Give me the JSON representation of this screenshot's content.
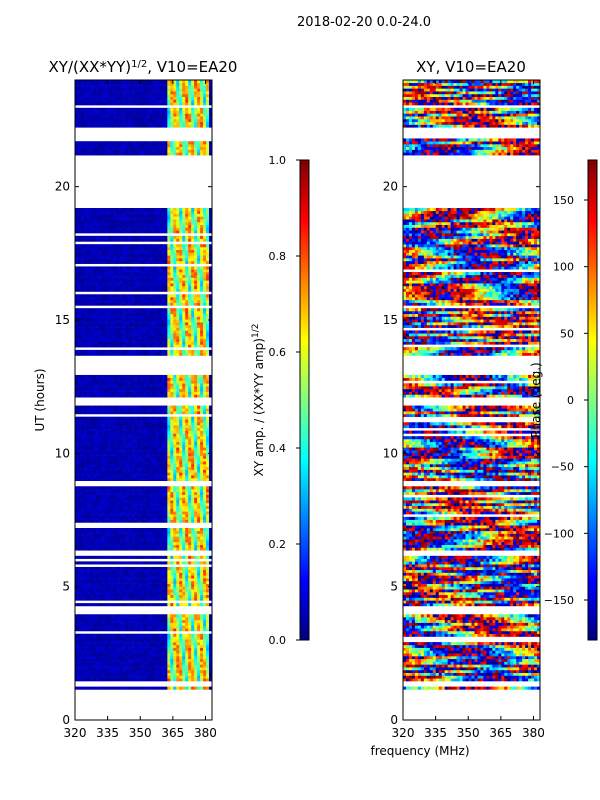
{
  "suptitle": "2018-02-20 0.0-24.0",
  "xlabel_shared": "frequency (MHz)",
  "colormap_stops": [
    "#00007f",
    "#0000ff",
    "#007fff",
    "#00ffff",
    "#7fff7f",
    "#ffff00",
    "#ff7f00",
    "#ff0000",
    "#7f0000"
  ],
  "chart_data": [
    {
      "type": "heatmap",
      "title_main": "XY/(XX*YY)",
      "title_exp": "1/2",
      "title_suffix": ", V10=EA20",
      "xlabel": "",
      "ylabel": "UT (hours)",
      "xlim": [
        320,
        383
      ],
      "ylim": [
        0,
        24
      ],
      "xticks": [
        "320",
        "335",
        "350",
        "365",
        "380"
      ],
      "xtick_values": [
        320,
        335,
        350,
        365,
        380
      ],
      "yticks": [
        "0",
        "5",
        "10",
        "15",
        "20"
      ],
      "ytick_values": [
        0,
        5,
        10,
        15,
        20
      ],
      "data_range_hours": [
        1.1,
        24.0
      ],
      "gap_hours": [
        [
          0,
          1.1
        ],
        [
          1.3,
          1.5
        ],
        [
          4.0,
          4.3
        ],
        [
          6.2,
          6.4
        ],
        [
          8.8,
          9.0
        ],
        [
          11.8,
          12.1
        ],
        [
          12.9,
          13.7
        ],
        [
          19.2,
          21.2
        ],
        [
          21.8,
          22.2
        ],
        [
          23.0,
          23.1
        ]
      ],
      "bright_band_mhz": [
        362,
        381
      ],
      "colorbar": {
        "label_main": "XY amp. / (XX*YY amp)",
        "label_exp": "1/2",
        "range": [
          0.0,
          1.0
        ],
        "tick_labels": [
          "0.0",
          "0.2",
          "0.4",
          "0.6",
          "0.8",
          "1.0"
        ],
        "tick_values": [
          0.0,
          0.2,
          0.4,
          0.6,
          0.8,
          1.0
        ]
      }
    },
    {
      "type": "heatmap",
      "title_main": "XY, V10=EA20",
      "xlabel": "frequency (MHz)",
      "ylabel": "",
      "xlim": [
        320,
        383
      ],
      "ylim": [
        0,
        24
      ],
      "xticks": [
        "320",
        "335",
        "350",
        "365",
        "380"
      ],
      "xtick_values": [
        320,
        335,
        350,
        365,
        380
      ],
      "yticks": [
        "0",
        "5",
        "10",
        "15",
        "20"
      ],
      "ytick_values": [
        0,
        5,
        10,
        15,
        20
      ],
      "data_range_hours": [
        1.1,
        24.0
      ],
      "gap_hours": [
        [
          0,
          1.1
        ],
        [
          1.3,
          1.5
        ],
        [
          4.0,
          4.3
        ],
        [
          6.2,
          6.4
        ],
        [
          8.8,
          9.0
        ],
        [
          11.8,
          12.1
        ],
        [
          12.9,
          13.7
        ],
        [
          19.2,
          21.2
        ],
        [
          21.8,
          22.2
        ],
        [
          23.0,
          23.1
        ]
      ],
      "colorbar": {
        "label_main": "Phase (deg.)",
        "range": [
          -180,
          180
        ],
        "tick_labels": [
          "-150",
          "-100",
          "-50",
          "0",
          "50",
          "100",
          "150"
        ],
        "tick_values": [
          -150,
          -100,
          -50,
          0,
          50,
          100,
          150
        ]
      }
    }
  ]
}
